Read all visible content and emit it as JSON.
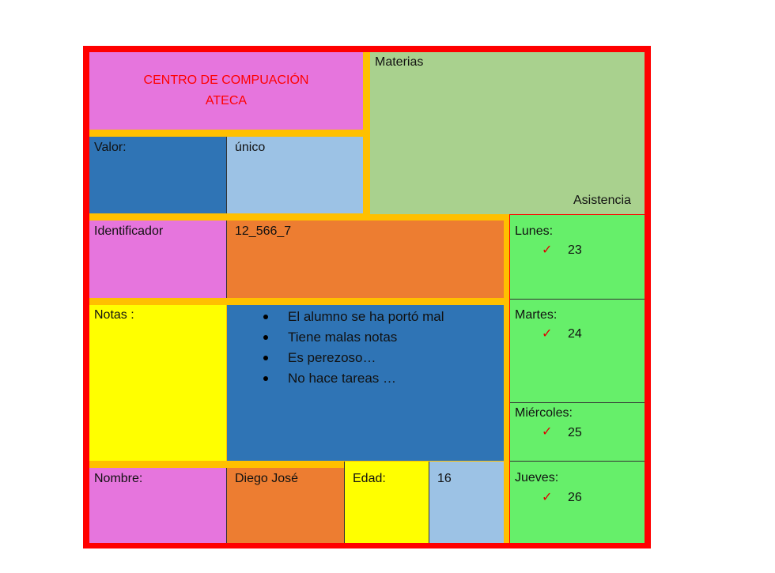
{
  "header": {
    "title_line1": "CENTRO DE COMPUACIÓN",
    "title_line2": "ATECA",
    "title_color": "#ff0000"
  },
  "materias_label": "Materias",
  "asistencia_label": "Asistencia",
  "valor": {
    "label": "Valor:",
    "value": "único"
  },
  "identificador": {
    "label": "Identificador",
    "value": "12_566_7"
  },
  "notas": {
    "label": "Notas :",
    "items": [
      "El alumno se ha portó mal",
      "Tiene malas notas",
      "Es perezoso…",
      "No hace tareas …"
    ]
  },
  "nombre": {
    "label": "Nombre:",
    "value": "Diego José"
  },
  "edad": {
    "label": "Edad:",
    "value": "16"
  },
  "attendance": [
    {
      "day": "Lunes:",
      "count": "23"
    },
    {
      "day": "Martes:",
      "count": "24"
    },
    {
      "day": "Miércoles:",
      "count": "25"
    },
    {
      "day": "Jueves:",
      "count": "26"
    }
  ],
  "icons": {
    "check": "checkmark-icon"
  },
  "colors": {
    "border": "#ff0000",
    "separator": "#ffc000",
    "pink": "#e675dd",
    "dark_blue": "#2f74b5",
    "light_blue": "#9cc2e5",
    "green": "#a9d18e",
    "orange": "#ed7d31",
    "yellow": "#ffff00",
    "light_green": "#66ef6a"
  }
}
